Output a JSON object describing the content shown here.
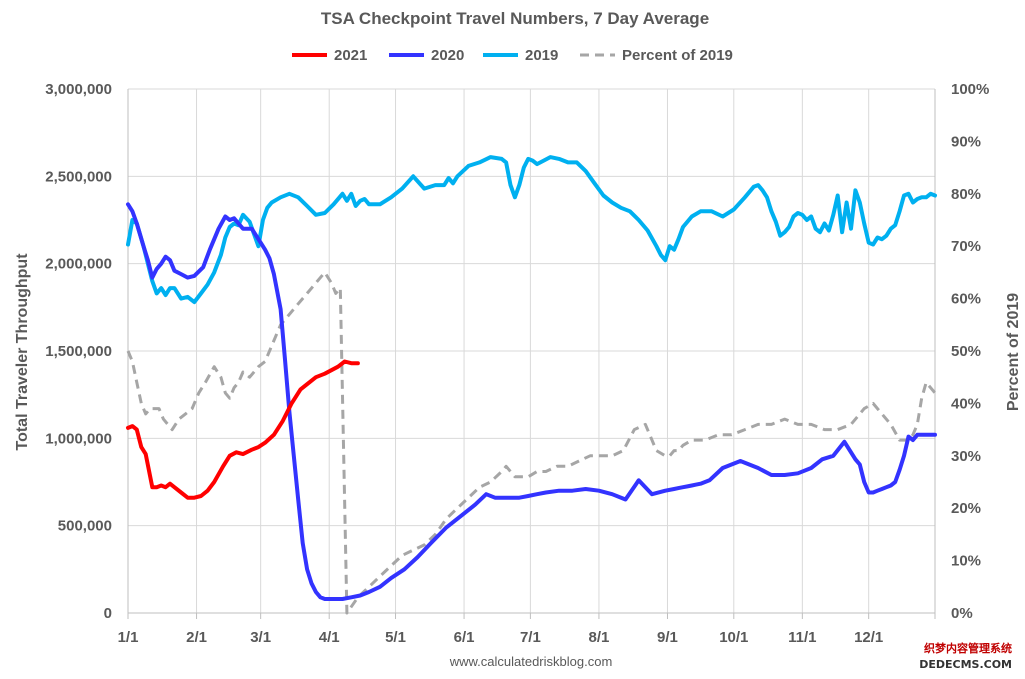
{
  "chart_data": {
    "type": "line",
    "title": "TSA Checkpoint Travel Numbers, 7 Day Average",
    "ylabel": "Total Traveler Throughput",
    "y2label": "Percent of 2019",
    "ylim": [
      0,
      3000000
    ],
    "y2lim": [
      0,
      100
    ],
    "yticks": [
      "0",
      "500,000",
      "1,000,000",
      "1,500,000",
      "2,000,000",
      "2,500,000",
      "3,000,000"
    ],
    "y2ticks": [
      "0%",
      "10%",
      "20%",
      "30%",
      "40%",
      "50%",
      "60%",
      "70%",
      "80%",
      "90%",
      "100%"
    ],
    "xticks": [
      "1/1",
      "2/1",
      "3/1",
      "4/1",
      "5/1",
      "6/1",
      "7/1",
      "8/1",
      "9/1",
      "10/1",
      "11/1",
      "12/1"
    ],
    "x_unit": "day of year",
    "grid": true,
    "legend_position": "top",
    "source": "www.calculatedriskblog.com",
    "series": [
      {
        "name": "2021",
        "color": "#ff0000",
        "axis": "left",
        "x": [
          1,
          3,
          5,
          7,
          9,
          12,
          14,
          16,
          18,
          20,
          22,
          25,
          28,
          31,
          34,
          37,
          40,
          44,
          47,
          50,
          53,
          57,
          60,
          63,
          67,
          71,
          75,
          79,
          83,
          86,
          90,
          93,
          96,
          99,
          102,
          105
        ],
        "values": [
          1060000,
          1070000,
          1050000,
          950000,
          910000,
          720000,
          720000,
          730000,
          720000,
          740000,
          720000,
          690000,
          660000,
          660000,
          670000,
          700000,
          750000,
          840000,
          900000,
          920000,
          910000,
          935000,
          950000,
          975000,
          1020000,
          1100000,
          1200000,
          1280000,
          1320000,
          1350000,
          1370000,
          1390000,
          1410000,
          1440000,
          1430000,
          1430000
        ]
      },
      {
        "name": "2020",
        "color": "#3333ff",
        "axis": "left",
        "x": [
          1,
          3,
          5,
          8,
          10,
          12,
          14,
          16,
          18,
          20,
          22,
          25,
          28,
          31,
          35,
          38,
          42,
          45,
          47,
          49,
          51,
          53,
          55,
          57,
          59,
          61,
          63,
          65,
          67,
          70,
          72,
          74,
          76,
          78,
          80,
          82,
          84,
          86,
          88,
          90,
          94,
          98,
          102,
          106,
          110,
          115,
          120,
          126,
          132,
          138,
          145,
          152,
          158,
          163,
          167,
          171,
          174,
          178,
          182,
          186,
          190,
          196,
          202,
          208,
          214,
          220,
          226,
          232,
          238,
          244,
          248,
          250,
          252,
          254,
          256,
          258,
          260,
          264,
          270,
          278,
          286,
          292,
          298,
          304,
          310,
          315,
          320,
          325,
          330,
          332,
          334,
          336,
          338,
          340,
          342,
          344,
          346,
          348,
          350,
          352,
          354,
          356,
          358,
          360,
          362,
          364,
          366
        ],
        "values": [
          2340000,
          2300000,
          2230000,
          2100000,
          2020000,
          1920000,
          1970000,
          2000000,
          2040000,
          2020000,
          1960000,
          1940000,
          1920000,
          1930000,
          1980000,
          2080000,
          2200000,
          2270000,
          2250000,
          2260000,
          2230000,
          2200000,
          2200000,
          2200000,
          2160000,
          2120000,
          2080000,
          2030000,
          1940000,
          1740000,
          1450000,
          1150000,
          900000,
          650000,
          400000,
          250000,
          170000,
          120000,
          90000,
          80000,
          80000,
          80000,
          90000,
          100000,
          120000,
          150000,
          200000,
          250000,
          320000,
          400000,
          490000,
          560000,
          620000,
          680000,
          660000,
          660000,
          660000,
          660000,
          670000,
          680000,
          690000,
          700000,
          700000,
          710000,
          700000,
          680000,
          650000,
          760000,
          680000,
          700000,
          710000,
          715000,
          720000,
          725000,
          730000,
          735000,
          740000,
          760000,
          830000,
          870000,
          830000,
          790000,
          790000,
          800000,
          830000,
          880000,
          900000,
          980000,
          880000,
          850000,
          750000,
          690000,
          690000,
          700000,
          710000,
          720000,
          730000,
          750000,
          820000,
          900000,
          1010000,
          990000,
          1020000,
          1020000,
          1020000,
          1020000,
          1020000
        ]
      },
      {
        "name": "2019",
        "color": "#00b0f0",
        "axis": "left",
        "x": [
          1,
          3,
          5,
          8,
          10,
          12,
          14,
          16,
          18,
          20,
          22,
          25,
          28,
          31,
          34,
          37,
          40,
          43,
          45,
          47,
          49,
          51,
          53,
          56,
          58,
          60,
          62,
          64,
          66,
          70,
          74,
          78,
          82,
          86,
          90,
          94,
          98,
          100,
          102,
          104,
          106,
          108,
          110,
          115,
          120,
          125,
          130,
          135,
          140,
          144,
          146,
          148,
          150,
          155,
          160,
          165,
          170,
          172,
          174,
          176,
          178,
          180,
          182,
          184,
          186,
          189,
          192,
          196,
          200,
          204,
          208,
          212,
          216,
          220,
          224,
          228,
          232,
          236,
          240,
          242,
          244,
          246,
          248,
          250,
          252,
          256,
          260,
          265,
          270,
          275,
          280,
          284,
          286,
          288,
          290,
          292,
          294,
          296,
          298,
          300,
          302,
          304,
          306,
          308,
          310,
          312,
          314,
          316,
          318,
          320,
          322,
          324,
          326,
          328,
          330,
          332,
          334,
          336,
          338,
          340,
          342,
          344,
          346,
          348,
          350,
          352,
          354,
          356,
          358,
          360,
          362,
          364,
          366
        ],
        "values": [
          2110000,
          2250000,
          2230000,
          2100000,
          2000000,
          1900000,
          1830000,
          1860000,
          1820000,
          1860000,
          1860000,
          1800000,
          1810000,
          1780000,
          1830000,
          1880000,
          1950000,
          2050000,
          2150000,
          2210000,
          2230000,
          2220000,
          2280000,
          2240000,
          2170000,
          2100000,
          2250000,
          2320000,
          2350000,
          2380000,
          2400000,
          2380000,
          2330000,
          2280000,
          2290000,
          2340000,
          2400000,
          2360000,
          2400000,
          2330000,
          2360000,
          2370000,
          2340000,
          2340000,
          2380000,
          2430000,
          2500000,
          2430000,
          2450000,
          2450000,
          2490000,
          2460000,
          2500000,
          2560000,
          2580000,
          2610000,
          2600000,
          2580000,
          2450000,
          2380000,
          2450000,
          2550000,
          2600000,
          2590000,
          2570000,
          2590000,
          2610000,
          2600000,
          2580000,
          2580000,
          2530000,
          2460000,
          2390000,
          2350000,
          2320000,
          2300000,
          2250000,
          2190000,
          2100000,
          2050000,
          2020000,
          2100000,
          2080000,
          2140000,
          2210000,
          2270000,
          2300000,
          2300000,
          2270000,
          2310000,
          2380000,
          2440000,
          2450000,
          2420000,
          2380000,
          2300000,
          2240000,
          2160000,
          2180000,
          2210000,
          2270000,
          2290000,
          2280000,
          2250000,
          2270000,
          2200000,
          2180000,
          2230000,
          2190000,
          2280000,
          2390000,
          2180000,
          2350000,
          2200000,
          2420000,
          2350000,
          2230000,
          2120000,
          2110000,
          2150000,
          2140000,
          2160000,
          2200000,
          2220000,
          2300000,
          2390000,
          2400000,
          2350000,
          2370000,
          2380000,
          2380000,
          2400000,
          2390000
        ]
      },
      {
        "name": "Percent of 2019",
        "color": "#a6a6a6",
        "axis": "right",
        "dashed": true,
        "x": [
          1,
          3,
          5,
          7,
          9,
          11,
          13,
          15,
          17,
          19,
          21,
          24,
          27,
          30,
          33,
          36,
          40,
          43,
          45,
          47,
          49,
          51,
          53,
          56,
          60,
          63,
          66,
          70,
          74,
          78,
          82,
          86,
          90,
          93,
          95,
          97,
          100,
          105,
          110,
          115,
          120,
          125,
          130,
          135,
          140,
          145,
          150,
          155,
          160,
          165,
          170,
          172,
          174,
          176,
          178,
          182,
          186,
          190,
          195,
          200,
          205,
          210,
          215,
          220,
          225,
          230,
          235,
          240,
          244,
          246,
          248,
          250,
          252,
          256,
          262,
          268,
          274,
          280,
          286,
          292,
          298,
          304,
          310,
          316,
          322,
          328,
          334,
          338,
          342,
          346,
          350,
          352,
          354,
          356,
          358,
          360,
          362,
          364,
          366
        ],
        "values": [
          50,
          48,
          44,
          40,
          38,
          39,
          39,
          39,
          37,
          36,
          35,
          37,
          38,
          39,
          42,
          44,
          47,
          45,
          42,
          41,
          43,
          44,
          46,
          45,
          47,
          48,
          51,
          55,
          57,
          59,
          61,
          63,
          65,
          63,
          61,
          62,
          0,
          3,
          5,
          7,
          9,
          11,
          12,
          13,
          15,
          18,
          20,
          22,
          24,
          25,
          27,
          28,
          27,
          26,
          26,
          26,
          27,
          27,
          28,
          28,
          29,
          30,
          30,
          30,
          31,
          35,
          36,
          31,
          30,
          30,
          31,
          31,
          32,
          33,
          33,
          34,
          34,
          35,
          36,
          36,
          37,
          36,
          36,
          35,
          35,
          36,
          39,
          40,
          38,
          36,
          33,
          33,
          33,
          34,
          36,
          41,
          44,
          43,
          42
        ]
      }
    ]
  },
  "watermark": {
    "line1": "织梦内容管理系统",
    "line2": "DEDECMS.COM"
  }
}
